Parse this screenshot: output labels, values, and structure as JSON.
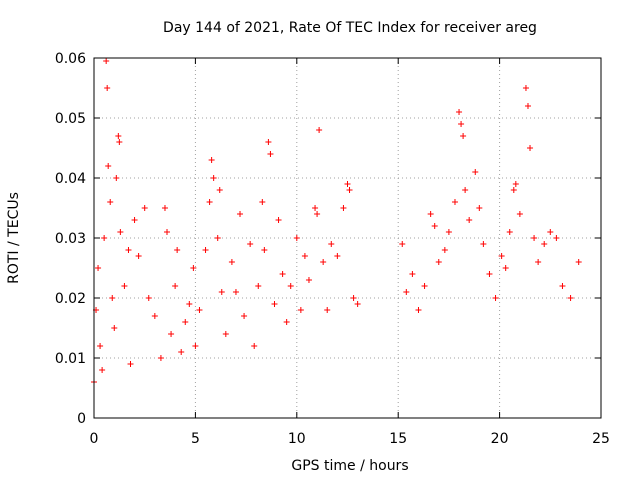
{
  "chart_data": {
    "type": "scatter",
    "title": "Day 144 of 2021, Rate Of TEC Index for receiver areg",
    "xlabel": "GPS time / hours",
    "ylabel": "ROTI / TECUs",
    "xlim": [
      0,
      25
    ],
    "ylim": [
      0,
      0.06
    ],
    "x_ticks": [
      "0",
      "5",
      "10",
      "15",
      "20",
      "25"
    ],
    "y_ticks": [
      "0",
      "0.01",
      "0.02",
      "0.03",
      "0.04",
      "0.05",
      "0.06"
    ],
    "grid": true,
    "marker": "+",
    "series": [
      {
        "color": "#ff0000",
        "points": [
          [
            0.0,
            0.006
          ],
          [
            0.1,
            0.018
          ],
          [
            0.2,
            0.025
          ],
          [
            0.3,
            0.012
          ],
          [
            0.4,
            0.008
          ],
          [
            0.5,
            0.03
          ],
          [
            0.6,
            0.0595
          ],
          [
            0.65,
            0.055
          ],
          [
            0.7,
            0.042
          ],
          [
            0.8,
            0.036
          ],
          [
            0.9,
            0.02
          ],
          [
            1.0,
            0.015
          ],
          [
            1.1,
            0.04
          ],
          [
            1.2,
            0.047
          ],
          [
            1.25,
            0.046
          ],
          [
            1.3,
            0.031
          ],
          [
            1.5,
            0.022
          ],
          [
            1.7,
            0.028
          ],
          [
            1.8,
            0.009
          ],
          [
            2.0,
            0.033
          ],
          [
            2.2,
            0.027
          ],
          [
            2.5,
            0.035
          ],
          [
            2.7,
            0.02
          ],
          [
            3.0,
            0.017
          ],
          [
            3.3,
            0.01
          ],
          [
            3.5,
            0.035
          ],
          [
            3.6,
            0.031
          ],
          [
            3.8,
            0.014
          ],
          [
            4.0,
            0.022
          ],
          [
            4.1,
            0.028
          ],
          [
            4.3,
            0.011
          ],
          [
            4.5,
            0.016
          ],
          [
            4.7,
            0.019
          ],
          [
            4.9,
            0.025
          ],
          [
            5.0,
            0.012
          ],
          [
            5.2,
            0.018
          ],
          [
            5.5,
            0.028
          ],
          [
            5.7,
            0.036
          ],
          [
            5.8,
            0.043
          ],
          [
            5.9,
            0.04
          ],
          [
            6.1,
            0.03
          ],
          [
            6.2,
            0.038
          ],
          [
            6.3,
            0.021
          ],
          [
            6.5,
            0.014
          ],
          [
            6.8,
            0.026
          ],
          [
            7.0,
            0.021
          ],
          [
            7.2,
            0.034
          ],
          [
            7.4,
            0.017
          ],
          [
            7.7,
            0.029
          ],
          [
            7.9,
            0.012
          ],
          [
            8.1,
            0.022
          ],
          [
            8.3,
            0.036
          ],
          [
            8.4,
            0.028
          ],
          [
            8.6,
            0.046
          ],
          [
            8.7,
            0.044
          ],
          [
            8.9,
            0.019
          ],
          [
            9.1,
            0.033
          ],
          [
            9.3,
            0.024
          ],
          [
            9.5,
            0.016
          ],
          [
            9.7,
            0.022
          ],
          [
            10.0,
            0.03
          ],
          [
            10.2,
            0.018
          ],
          [
            10.4,
            0.027
          ],
          [
            10.6,
            0.023
          ],
          [
            10.9,
            0.035
          ],
          [
            11.0,
            0.034
          ],
          [
            11.1,
            0.048
          ],
          [
            11.3,
            0.026
          ],
          [
            11.5,
            0.018
          ],
          [
            11.7,
            0.029
          ],
          [
            12.0,
            0.027
          ],
          [
            12.3,
            0.035
          ],
          [
            12.5,
            0.039
          ],
          [
            12.6,
            0.038
          ],
          [
            12.8,
            0.02
          ],
          [
            13.0,
            0.019
          ],
          [
            15.2,
            0.029
          ],
          [
            15.4,
            0.021
          ],
          [
            15.7,
            0.024
          ],
          [
            16.0,
            0.018
          ],
          [
            16.3,
            0.022
          ],
          [
            16.6,
            0.034
          ],
          [
            16.8,
            0.032
          ],
          [
            17.0,
            0.026
          ],
          [
            17.3,
            0.028
          ],
          [
            17.5,
            0.031
          ],
          [
            17.8,
            0.036
          ],
          [
            18.0,
            0.051
          ],
          [
            18.1,
            0.049
          ],
          [
            18.2,
            0.047
          ],
          [
            18.3,
            0.038
          ],
          [
            18.5,
            0.033
          ],
          [
            18.8,
            0.041
          ],
          [
            19.0,
            0.035
          ],
          [
            19.2,
            0.029
          ],
          [
            19.5,
            0.024
          ],
          [
            19.8,
            0.02
          ],
          [
            20.1,
            0.027
          ],
          [
            20.3,
            0.025
          ],
          [
            20.5,
            0.031
          ],
          [
            20.7,
            0.038
          ],
          [
            20.8,
            0.039
          ],
          [
            21.0,
            0.034
          ],
          [
            21.3,
            0.055
          ],
          [
            21.4,
            0.052
          ],
          [
            21.5,
            0.045
          ],
          [
            21.7,
            0.03
          ],
          [
            21.9,
            0.026
          ],
          [
            22.2,
            0.029
          ],
          [
            22.5,
            0.031
          ],
          [
            22.8,
            0.03
          ],
          [
            23.1,
            0.022
          ],
          [
            23.5,
            0.02
          ],
          [
            23.9,
            0.026
          ]
        ]
      }
    ]
  }
}
